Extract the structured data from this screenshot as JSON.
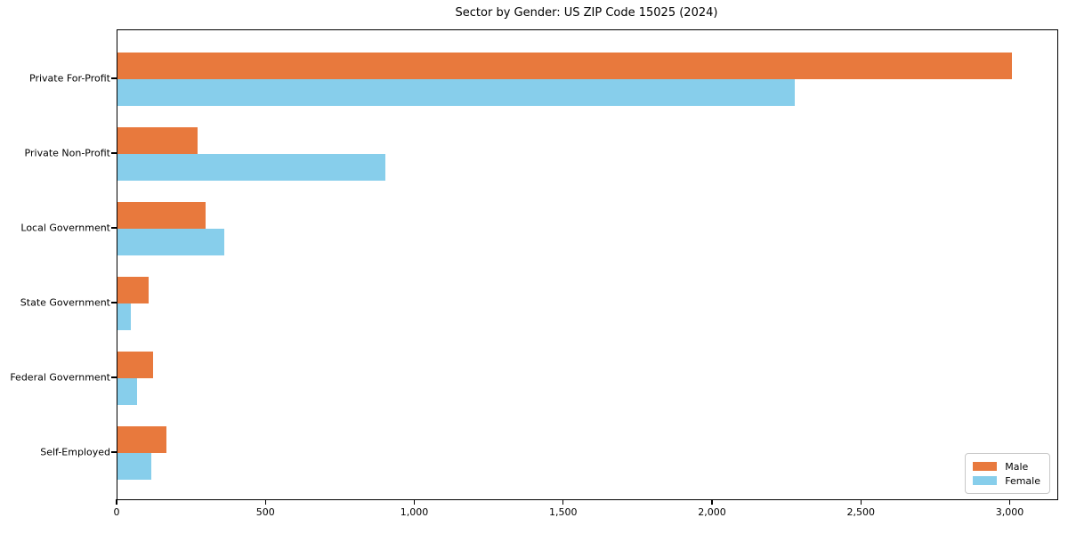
{
  "chart_data": {
    "type": "bar",
    "orientation": "horizontal",
    "title": "Sector by Gender: US ZIP Code 15025 (2024)",
    "categories": [
      "Private For-Profit",
      "Private Non-Profit",
      "Local Government",
      "State Government",
      "Federal Government",
      "Self-Employed"
    ],
    "series": [
      {
        "name": "Male",
        "color": "#e8793d",
        "values": [
          3005,
          270,
          295,
          105,
          120,
          165
        ]
      },
      {
        "name": "Female",
        "color": "#87ceeb",
        "values": [
          2275,
          900,
          360,
          45,
          65,
          115
        ]
      }
    ],
    "xlabel": "",
    "ylabel": "",
    "xlim": [
      0,
      3157
    ],
    "xticks": [
      0,
      500,
      1000,
      1500,
      2000,
      2500,
      3000
    ],
    "xtick_labels": [
      "0",
      "500",
      "1,000",
      "1,500",
      "2,000",
      "2,500",
      "3,000"
    ],
    "grid": false,
    "legend": {
      "position": "lower right",
      "entries": [
        "Male",
        "Female"
      ]
    },
    "colors": {
      "male": "#e8793d",
      "female": "#87ceeb",
      "spine": "#000000",
      "background": "#ffffff"
    }
  }
}
